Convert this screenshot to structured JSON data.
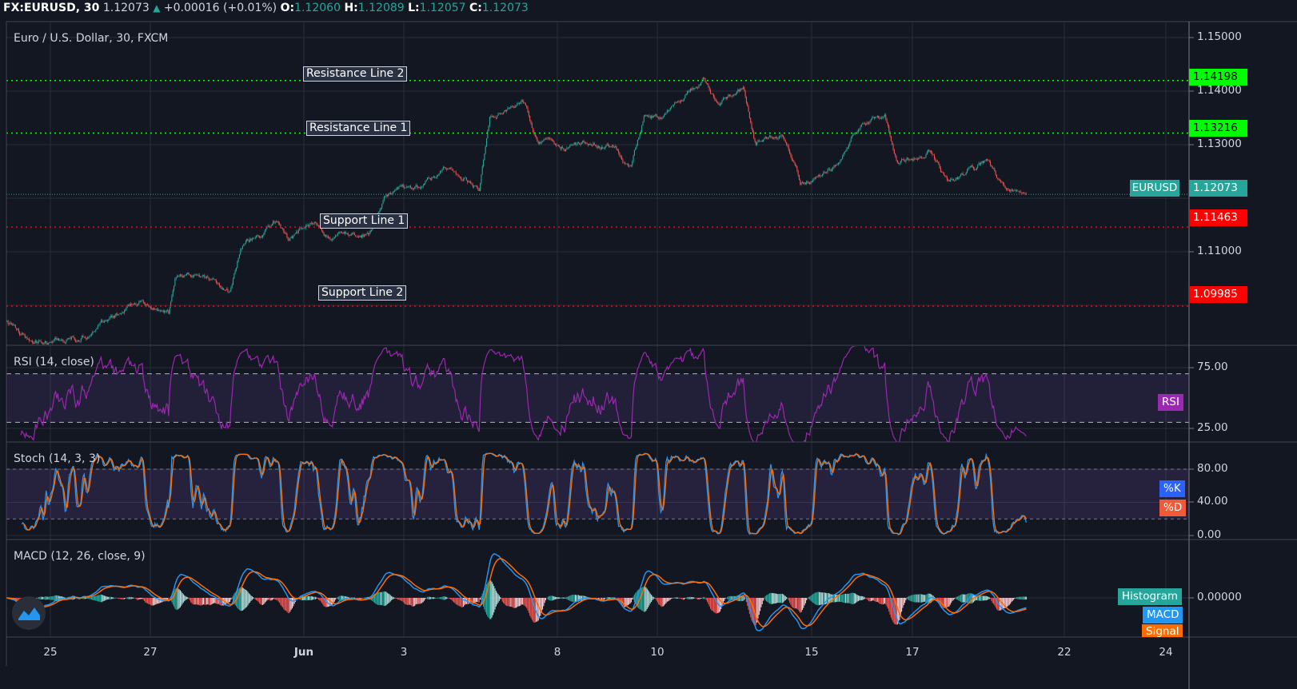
{
  "header": {
    "symbol": "FX:EURUSD, 30",
    "price": "1.12073",
    "change": "+0.00016 (+0.01%)",
    "o_label": "O:",
    "o": "1.12060",
    "h_label": "H:",
    "h": "1.12089",
    "l_label": "L:",
    "l": "1.12057",
    "c_label": "C:",
    "c": "1.12073"
  },
  "chart_title": "Euro / U.S. Dollar, 30, FXCM",
  "levels": [
    {
      "label": "Resistance Line 2",
      "price": "1.14198",
      "color": "#00ff00"
    },
    {
      "label": "Resistance Line 1",
      "price": "1.13216",
      "color": "#00ff00"
    },
    {
      "label": "Support Line 1",
      "price": "1.11463",
      "color": "#ff0000"
    },
    {
      "label": "Support Line 2",
      "price": "1.09985",
      "color": "#ff0000"
    }
  ],
  "last_price": {
    "symbol": "EURUSD",
    "price": "1.12073",
    "color": "#26a69a"
  },
  "price_axis_ticks": [
    "1.15000",
    "1.14000",
    "1.13000",
    "1.11000"
  ],
  "rsi": {
    "title": "RSI (14, close)",
    "ticks": [
      "75.00",
      "25.00"
    ],
    "legend": "RSI",
    "color": "#9c27b0"
  },
  "stoch": {
    "title": "Stoch (14, 3, 3)",
    "ticks": [
      "80.00",
      "40.00",
      "0.00"
    ],
    "legend_k": "%K",
    "legend_d": "%D",
    "color_k": "#2196f3",
    "color_d": "#ff6d00"
  },
  "macd": {
    "title": "MACD (12, 26, close, 9)",
    "ticks": [
      "0.00000"
    ],
    "legend_hist": "Histogram",
    "legend_macd": "MACD",
    "legend_signal": "Signal",
    "color_macd": "#2196f3",
    "color_signal": "#ff6d00",
    "color_hist": "#26a69a"
  },
  "time_axis": [
    "25",
    "27",
    "Jun",
    "3",
    "8",
    "10",
    "15",
    "17",
    "22",
    "24"
  ],
  "logo_icon": "tradingview-logo-icon",
  "chart_data": {
    "type": "candlestick",
    "interval": "30",
    "ylim": [
      1.0925,
      1.153
    ],
    "up_color": "#26a69a",
    "down_color": "#ef5350",
    "grid": true,
    "close_path": [
      {
        "t": "May 22 03:00",
        "price": 1.0966
      },
      {
        "t": "May 22 15:00",
        "price": 1.0928
      },
      {
        "t": "May 25 14:00",
        "price": 1.0936
      },
      {
        "t": "May 26 09:00",
        "price": 1.0981
      },
      {
        "t": "May 26 19:00",
        "price": 1.1006
      },
      {
        "t": "May 27 08:00",
        "price": 1.0973
      },
      {
        "t": "May 27 11:00",
        "price": 1.104
      },
      {
        "t": "May 28 03:00",
        "price": 1.104
      },
      {
        "t": "May 28 13:00",
        "price": 1.1015
      },
      {
        "t": "May 28 18:00",
        "price": 1.11
      },
      {
        "t": "May 29 11:00",
        "price": 1.1152
      },
      {
        "t": "May 29 17:00",
        "price": 1.1115
      },
      {
        "t": "Jun 1 05:00",
        "price": 1.116
      },
      {
        "t": "Jun 1 12:00",
        "price": 1.113
      },
      {
        "t": "Jun 2 07:00",
        "price": 1.1145
      },
      {
        "t": "Jun 2 15:00",
        "price": 1.1205
      },
      {
        "t": "Jun 3 06:00",
        "price": 1.1227
      },
      {
        "t": "Jun 3 19:00",
        "price": 1.1257
      },
      {
        "t": "Jun 4 11:00",
        "price": 1.1212
      },
      {
        "t": "Jun 4 16:00",
        "price": 1.1354
      },
      {
        "t": "Jun 5 08:00",
        "price": 1.1384
      },
      {
        "t": "Jun 5 15:00",
        "price": 1.1302
      },
      {
        "t": "Jun 8 10:00",
        "price": 1.1302
      },
      {
        "t": "Jun 9 01:00",
        "price": 1.1305
      },
      {
        "t": "Jun 9 11:00",
        "price": 1.1264
      },
      {
        "t": "Jun 9 17:00",
        "price": 1.1354
      },
      {
        "t": "Jun 10 08:00",
        "price": 1.1361
      },
      {
        "t": "Jun 10 21:00",
        "price": 1.1421
      },
      {
        "t": "Jun 11 03:00",
        "price": 1.1376
      },
      {
        "t": "Jun 11 16:00",
        "price": 1.1399
      },
      {
        "t": "Jun 11 22:00",
        "price": 1.1302
      },
      {
        "t": "Jun 12 10:00",
        "price": 1.1331
      },
      {
        "t": "Jun 12 19:00",
        "price": 1.1234
      },
      {
        "t": "Jun 15 12:00",
        "price": 1.1264
      },
      {
        "t": "Jun 15 23:00",
        "price": 1.1346
      },
      {
        "t": "Jun 16 11:00",
        "price": 1.1349
      },
      {
        "t": "Jun 16 17:00",
        "price": 1.1272
      },
      {
        "t": "Jun 17 08:00",
        "price": 1.1294
      },
      {
        "t": "Jun 17 17:00",
        "price": 1.1234
      },
      {
        "t": "Jun 18 11:00",
        "price": 1.1264
      },
      {
        "t": "Jun 18 20:00",
        "price": 1.1212
      },
      {
        "t": "Jun 19 06:00",
        "price": 1.12073
      }
    ]
  }
}
